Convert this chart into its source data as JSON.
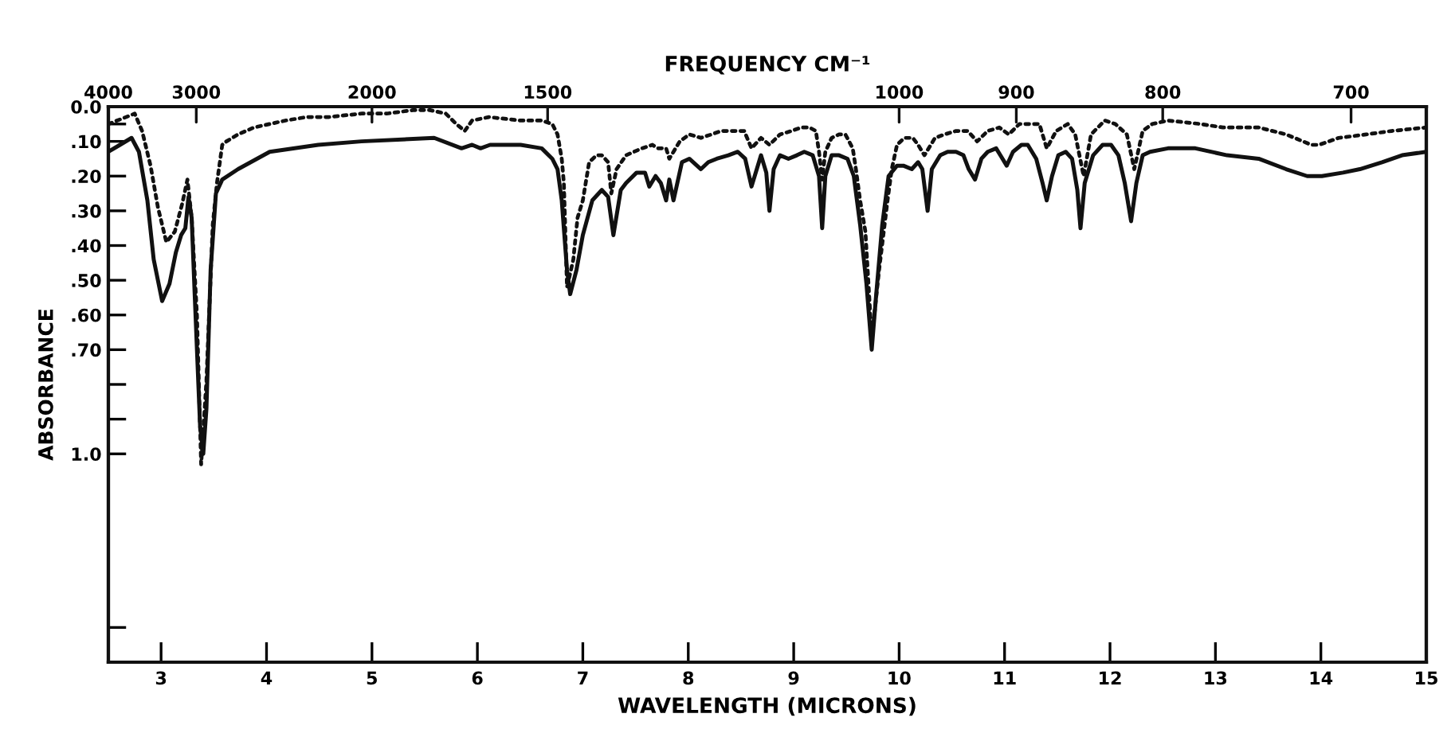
{
  "chart_data": {
    "type": "line",
    "xlabel": "WAVELENGTH (MICRONS)",
    "ylabel": "ABSORBANCE",
    "x2label": "FREQUENCY CM⁻¹",
    "xlim": [
      2.5,
      15
    ],
    "xticks": [
      3,
      4,
      5,
      6,
      7,
      8,
      9,
      10,
      11,
      12,
      13,
      14,
      15
    ],
    "annotations": [
      "4000",
      "3000",
      "2000",
      "1500",
      "1000",
      "900",
      "800",
      "700"
    ],
    "ylim": [
      1.6,
      0
    ],
    "yticks": [
      {
        "value": 0,
        "label": "0.0"
      },
      {
        "value": 0.05,
        "label": null
      },
      {
        "value": 0.1,
        "label": ".10"
      },
      {
        "value": 0.2,
        "label": ".20"
      },
      {
        "value": 0.3,
        "label": ".30"
      },
      {
        "value": 0.4,
        "label": ".40"
      },
      {
        "value": 0.5,
        "label": ".50"
      },
      {
        "value": 0.6,
        "label": ".60"
      },
      {
        "value": 0.7,
        "label": ".70"
      },
      {
        "value": 0.8,
        "label": null
      },
      {
        "value": 0.9,
        "label": null
      },
      {
        "value": 1.0,
        "label": "1.0"
      },
      {
        "value": 1.5,
        "label": null
      }
    ],
    "series": [
      {
        "color": "#111111",
        "line_style": "solid",
        "x": [
          2.5,
          2.61,
          2.72,
          2.79,
          2.87,
          2.93,
          3.01,
          3.08,
          3.14,
          3.19,
          3.23,
          3.26,
          3.29,
          3.32,
          3.37,
          3.4,
          3.43,
          3.47,
          3.52,
          3.58,
          3.73,
          4.03,
          4.49,
          4.9,
          5.59,
          5.85,
          5.95,
          6.03,
          6.12,
          6.41,
          6.61,
          6.71,
          6.76,
          6.8,
          6.85,
          6.88,
          6.94,
          7.0,
          7.09,
          7.18,
          7.24,
          7.29,
          7.36,
          7.41,
          7.51,
          7.59,
          7.63,
          7.69,
          7.74,
          7.79,
          7.82,
          7.86,
          7.94,
          8.01,
          8.12,
          8.19,
          8.27,
          8.38,
          8.47,
          8.54,
          8.6,
          8.65,
          8.69,
          8.74,
          8.77,
          8.81,
          8.87,
          8.95,
          9.03,
          9.1,
          9.18,
          9.24,
          9.27,
          9.3,
          9.36,
          9.43,
          9.51,
          9.57,
          9.63,
          9.69,
          9.74,
          9.78,
          9.84,
          9.9,
          9.98,
          10.04,
          10.12,
          10.18,
          10.22,
          10.27,
          10.31,
          10.39,
          10.46,
          10.54,
          10.61,
          10.66,
          10.72,
          10.78,
          10.84,
          10.92,
          10.96,
          11.02,
          11.08,
          11.16,
          11.22,
          11.3,
          11.36,
          11.4,
          11.45,
          11.51,
          11.58,
          11.64,
          11.69,
          11.72,
          11.76,
          11.84,
          11.93,
          12.01,
          12.08,
          12.14,
          12.2,
          12.25,
          12.31,
          12.38,
          12.55,
          12.81,
          13.11,
          13.41,
          13.67,
          13.87,
          14.01,
          14.21,
          14.37,
          14.58,
          14.77,
          15.0
        ],
        "values": [
          0.13,
          0.11,
          0.09,
          0.13,
          0.27,
          0.44,
          0.56,
          0.51,
          0.42,
          0.37,
          0.35,
          0.26,
          0.32,
          0.55,
          0.92,
          1.0,
          0.87,
          0.47,
          0.25,
          0.21,
          0.18,
          0.13,
          0.11,
          0.1,
          0.09,
          0.12,
          0.11,
          0.12,
          0.11,
          0.11,
          0.12,
          0.15,
          0.18,
          0.27,
          0.47,
          0.54,
          0.47,
          0.37,
          0.27,
          0.24,
          0.26,
          0.37,
          0.24,
          0.22,
          0.19,
          0.19,
          0.23,
          0.2,
          0.22,
          0.27,
          0.21,
          0.27,
          0.16,
          0.15,
          0.18,
          0.16,
          0.15,
          0.14,
          0.13,
          0.15,
          0.23,
          0.18,
          0.14,
          0.19,
          0.3,
          0.18,
          0.14,
          0.15,
          0.14,
          0.13,
          0.14,
          0.2,
          0.35,
          0.2,
          0.14,
          0.14,
          0.15,
          0.2,
          0.34,
          0.51,
          0.7,
          0.55,
          0.34,
          0.2,
          0.17,
          0.17,
          0.18,
          0.16,
          0.18,
          0.3,
          0.18,
          0.14,
          0.13,
          0.13,
          0.14,
          0.18,
          0.21,
          0.15,
          0.13,
          0.12,
          0.14,
          0.17,
          0.13,
          0.11,
          0.11,
          0.15,
          0.22,
          0.27,
          0.2,
          0.14,
          0.13,
          0.15,
          0.24,
          0.35,
          0.22,
          0.14,
          0.11,
          0.11,
          0.14,
          0.22,
          0.33,
          0.22,
          0.14,
          0.13,
          0.12,
          0.12,
          0.14,
          0.15,
          0.18,
          0.2,
          0.2,
          0.19,
          0.18,
          0.16,
          0.14,
          0.13
        ]
      },
      {
        "color": "#111111",
        "line_style": "dotted",
        "x": [
          2.5,
          2.75,
          2.82,
          2.9,
          2.97,
          3.05,
          3.13,
          3.2,
          3.25,
          3.29,
          3.34,
          3.38,
          3.43,
          3.49,
          3.53,
          3.58,
          3.62,
          3.73,
          3.88,
          4.03,
          4.18,
          4.38,
          4.59,
          4.9,
          5.14,
          5.39,
          5.55,
          5.7,
          5.8,
          5.88,
          5.95,
          6.11,
          6.41,
          6.61,
          6.71,
          6.76,
          6.8,
          6.82,
          6.85,
          6.91,
          6.95,
          7.0,
          7.06,
          7.13,
          7.18,
          7.24,
          7.27,
          7.32,
          7.41,
          7.56,
          7.66,
          7.71,
          7.79,
          7.82,
          7.86,
          7.92,
          8.01,
          8.12,
          8.22,
          8.31,
          8.42,
          8.53,
          8.6,
          8.69,
          8.77,
          8.87,
          8.98,
          9.07,
          9.15,
          9.21,
          9.24,
          9.27,
          9.3,
          9.36,
          9.43,
          9.49,
          9.56,
          9.59,
          9.63,
          9.68,
          9.74,
          9.81,
          9.89,
          9.93,
          9.98,
          10.05,
          10.13,
          10.18,
          10.24,
          10.3,
          10.34,
          10.43,
          10.54,
          10.65,
          10.74,
          10.84,
          10.95,
          11.04,
          11.14,
          11.25,
          11.33,
          11.4,
          11.49,
          11.6,
          11.67,
          11.75,
          11.82,
          11.95,
          12.05,
          12.16,
          12.23,
          12.31,
          12.4,
          12.55,
          12.86,
          13.07,
          13.41,
          13.67,
          13.91,
          13.98,
          14.17,
          14.43,
          14.67,
          15.0
        ],
        "values": [
          0.05,
          0.02,
          0.07,
          0.17,
          0.29,
          0.39,
          0.36,
          0.28,
          0.21,
          0.32,
          0.6,
          1.03,
          0.79,
          0.34,
          0.22,
          0.11,
          0.1,
          0.08,
          0.06,
          0.05,
          0.04,
          0.03,
          0.03,
          0.02,
          0.02,
          0.01,
          0.01,
          0.02,
          0.05,
          0.07,
          0.04,
          0.03,
          0.04,
          0.04,
          0.05,
          0.08,
          0.15,
          0.22,
          0.52,
          0.44,
          0.32,
          0.27,
          0.16,
          0.14,
          0.14,
          0.16,
          0.25,
          0.18,
          0.14,
          0.12,
          0.11,
          0.12,
          0.12,
          0.15,
          0.13,
          0.1,
          0.08,
          0.09,
          0.08,
          0.07,
          0.07,
          0.07,
          0.12,
          0.09,
          0.11,
          0.08,
          0.07,
          0.06,
          0.06,
          0.07,
          0.13,
          0.21,
          0.13,
          0.09,
          0.08,
          0.08,
          0.12,
          0.18,
          0.27,
          0.36,
          0.67,
          0.47,
          0.27,
          0.18,
          0.11,
          0.09,
          0.09,
          0.11,
          0.14,
          0.11,
          0.09,
          0.08,
          0.07,
          0.07,
          0.1,
          0.07,
          0.06,
          0.08,
          0.05,
          0.05,
          0.05,
          0.12,
          0.07,
          0.05,
          0.08,
          0.2,
          0.08,
          0.04,
          0.05,
          0.08,
          0.18,
          0.07,
          0.05,
          0.04,
          0.05,
          0.06,
          0.06,
          0.08,
          0.11,
          0.11,
          0.09,
          0.08,
          0.07,
          0.06
        ]
      }
    ]
  }
}
